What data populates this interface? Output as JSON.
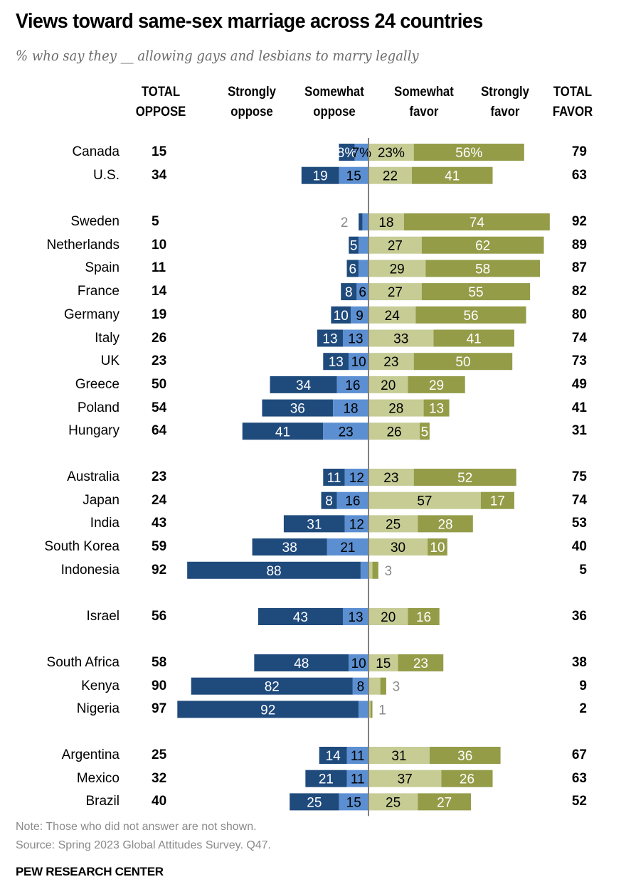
{
  "chart_data": {
    "type": "bar",
    "orientation": "horizontal-diverging",
    "title": "Views toward same-sex marriage across 24 countries",
    "subtitle": "% who say they __ allowing gays and lesbians to marry legally",
    "columns": {
      "total_oppose": [
        "TOTAL",
        "OPPOSE"
      ],
      "strongly_oppose": [
        "Strongly",
        "oppose"
      ],
      "somewhat_oppose": [
        "Somewhat",
        "oppose"
      ],
      "somewhat_favor": [
        "Somewhat",
        "favor"
      ],
      "strongly_favor": [
        "Strongly",
        "favor"
      ],
      "total_favor": [
        "TOTAL",
        "FAVOR"
      ]
    },
    "colors": {
      "strongly_oppose": "#1f4a7c",
      "somewhat_oppose": "#5b8fd1",
      "somewhat_favor": "#c6cc94",
      "strongly_favor": "#949c48",
      "center_line": "#808080",
      "outside_label": "#8a8a8a"
    },
    "groups": [
      {
        "rows": [
          {
            "country": "Canada",
            "total_oppose": 15,
            "strongly_oppose": 8,
            "somewhat_oppose": 7,
            "somewhat_favor": 23,
            "strongly_favor": 56,
            "total_favor": 79,
            "labels": [
              "8%",
              "7%",
              "23%",
              "56%"
            ]
          },
          {
            "country": "U.S.",
            "total_oppose": 34,
            "strongly_oppose": 19,
            "somewhat_oppose": 15,
            "somewhat_favor": 22,
            "strongly_favor": 41,
            "total_favor": 63,
            "labels": [
              "19",
              "15",
              "22",
              "41"
            ]
          }
        ]
      },
      {
        "rows": [
          {
            "country": "Sweden",
            "total_oppose": 5,
            "strongly_oppose": 2,
            "somewhat_oppose": 3,
            "somewhat_favor": 18,
            "strongly_favor": 74,
            "total_favor": 92,
            "labels": [
              "2",
              "",
              "18",
              "74"
            ]
          },
          {
            "country": "Netherlands",
            "total_oppose": 10,
            "strongly_oppose": 5,
            "somewhat_oppose": 5,
            "somewhat_favor": 27,
            "strongly_favor": 62,
            "total_favor": 89,
            "labels": [
              "5",
              "",
              "27",
              "62"
            ]
          },
          {
            "country": "Spain",
            "total_oppose": 11,
            "strongly_oppose": 6,
            "somewhat_oppose": 5,
            "somewhat_favor": 29,
            "strongly_favor": 58,
            "total_favor": 87,
            "labels": [
              "6",
              "",
              "29",
              "58"
            ]
          },
          {
            "country": "France",
            "total_oppose": 14,
            "strongly_oppose": 8,
            "somewhat_oppose": 6,
            "somewhat_favor": 27,
            "strongly_favor": 55,
            "total_favor": 82,
            "labels": [
              "8",
              "6",
              "27",
              "55"
            ]
          },
          {
            "country": "Germany",
            "total_oppose": 19,
            "strongly_oppose": 10,
            "somewhat_oppose": 9,
            "somewhat_favor": 24,
            "strongly_favor": 56,
            "total_favor": 80,
            "labels": [
              "10",
              "9",
              "24",
              "56"
            ]
          },
          {
            "country": "Italy",
            "total_oppose": 26,
            "strongly_oppose": 13,
            "somewhat_oppose": 13,
            "somewhat_favor": 33,
            "strongly_favor": 41,
            "total_favor": 74,
            "labels": [
              "13",
              "13",
              "33",
              "41"
            ]
          },
          {
            "country": "UK",
            "total_oppose": 23,
            "strongly_oppose": 13,
            "somewhat_oppose": 10,
            "somewhat_favor": 23,
            "strongly_favor": 50,
            "total_favor": 73,
            "labels": [
              "13",
              "10",
              "23",
              "50"
            ]
          },
          {
            "country": "Greece",
            "total_oppose": 50,
            "strongly_oppose": 34,
            "somewhat_oppose": 16,
            "somewhat_favor": 20,
            "strongly_favor": 29,
            "total_favor": 49,
            "labels": [
              "34",
              "16",
              "20",
              "29"
            ]
          },
          {
            "country": "Poland",
            "total_oppose": 54,
            "strongly_oppose": 36,
            "somewhat_oppose": 18,
            "somewhat_favor": 28,
            "strongly_favor": 13,
            "total_favor": 41,
            "labels": [
              "36",
              "18",
              "28",
              "13"
            ]
          },
          {
            "country": "Hungary",
            "total_oppose": 64,
            "strongly_oppose": 41,
            "somewhat_oppose": 23,
            "somewhat_favor": 26,
            "strongly_favor": 5,
            "total_favor": 31,
            "labels": [
              "41",
              "23",
              "26",
              "5"
            ]
          }
        ]
      },
      {
        "rows": [
          {
            "country": "Australia",
            "total_oppose": 23,
            "strongly_oppose": 11,
            "somewhat_oppose": 12,
            "somewhat_favor": 23,
            "strongly_favor": 52,
            "total_favor": 75,
            "labels": [
              "11",
              "12",
              "23",
              "52"
            ]
          },
          {
            "country": "Japan",
            "total_oppose": 24,
            "strongly_oppose": 8,
            "somewhat_oppose": 16,
            "somewhat_favor": 57,
            "strongly_favor": 17,
            "total_favor": 74,
            "labels": [
              "8",
              "16",
              "57",
              "17"
            ]
          },
          {
            "country": "India",
            "total_oppose": 43,
            "strongly_oppose": 31,
            "somewhat_oppose": 12,
            "somewhat_favor": 25,
            "strongly_favor": 28,
            "total_favor": 53,
            "labels": [
              "31",
              "12",
              "25",
              "28"
            ]
          },
          {
            "country": "South Korea",
            "total_oppose": 59,
            "strongly_oppose": 38,
            "somewhat_oppose": 21,
            "somewhat_favor": 30,
            "strongly_favor": 10,
            "total_favor": 40,
            "labels": [
              "38",
              "21",
              "30",
              "10"
            ]
          },
          {
            "country": "Indonesia",
            "total_oppose": 92,
            "strongly_oppose": 88,
            "somewhat_oppose": 4,
            "somewhat_favor": 2,
            "strongly_favor": 3,
            "total_favor": 5,
            "labels": [
              "88",
              "",
              "",
              "3"
            ]
          }
        ]
      },
      {
        "rows": [
          {
            "country": "Israel",
            "total_oppose": 56,
            "strongly_oppose": 43,
            "somewhat_oppose": 13,
            "somewhat_favor": 20,
            "strongly_favor": 16,
            "total_favor": 36,
            "labels": [
              "43",
              "13",
              "20",
              "16"
            ]
          }
        ]
      },
      {
        "rows": [
          {
            "country": "South Africa",
            "total_oppose": 58,
            "strongly_oppose": 48,
            "somewhat_oppose": 10,
            "somewhat_favor": 15,
            "strongly_favor": 23,
            "total_favor": 38,
            "labels": [
              "48",
              "10",
              "15",
              "23"
            ]
          },
          {
            "country": "Kenya",
            "total_oppose": 90,
            "strongly_oppose": 82,
            "somewhat_oppose": 8,
            "somewhat_favor": 6,
            "strongly_favor": 3,
            "total_favor": 9,
            "labels": [
              "82",
              "8",
              "",
              "3"
            ]
          },
          {
            "country": "Nigeria",
            "total_oppose": 97,
            "strongly_oppose": 92,
            "somewhat_oppose": 5,
            "somewhat_favor": 1,
            "strongly_favor": 1,
            "total_favor": 2,
            "labels": [
              "92",
              "",
              "",
              "1"
            ]
          }
        ]
      },
      {
        "rows": [
          {
            "country": "Argentina",
            "total_oppose": 25,
            "strongly_oppose": 14,
            "somewhat_oppose": 11,
            "somewhat_favor": 31,
            "strongly_favor": 36,
            "total_favor": 67,
            "labels": [
              "14",
              "11",
              "31",
              "36"
            ]
          },
          {
            "country": "Mexico",
            "total_oppose": 32,
            "strongly_oppose": 21,
            "somewhat_oppose": 11,
            "somewhat_favor": 37,
            "strongly_favor": 26,
            "total_favor": 63,
            "labels": [
              "21",
              "11",
              "37",
              "26"
            ]
          },
          {
            "country": "Brazil",
            "total_oppose": 40,
            "strongly_oppose": 25,
            "somewhat_oppose": 15,
            "somewhat_favor": 25,
            "strongly_favor": 27,
            "total_favor": 52,
            "labels": [
              "25",
              "15",
              "25",
              "27"
            ]
          }
        ]
      }
    ],
    "note": "Note: Those who did not answer are not shown.",
    "source": "Source: Spring 2023 Global Attitudes Survey. Q47.",
    "attribution": "PEW RESEARCH CENTER"
  }
}
